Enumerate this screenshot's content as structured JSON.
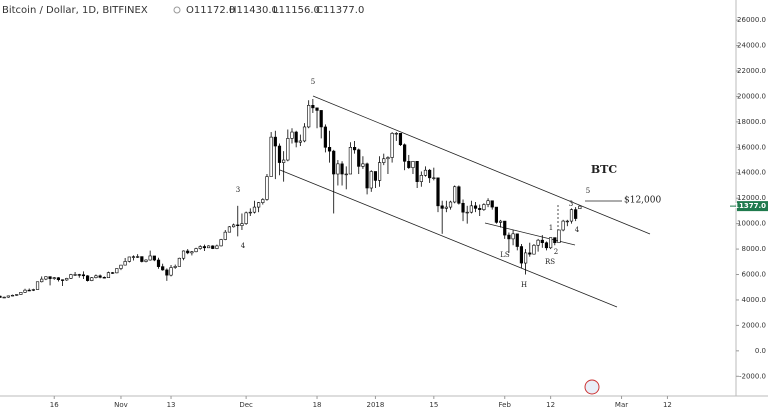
{
  "header": {
    "symbol": "Bitcoin / Dollar, 1D, BITFINEX",
    "open": "O11172.0",
    "high": "H11430.0",
    "low": "L11156.0",
    "close": "C11377.0"
  },
  "chart_data": {
    "type": "candlestick",
    "ohlc": [
      [
        4300,
        4350,
        4150,
        4200
      ],
      [
        4200,
        4260,
        4150,
        4220
      ],
      [
        4220,
        4350,
        4170,
        4320
      ],
      [
        4320,
        4420,
        4290,
        4370
      ],
      [
        4370,
        4460,
        4330,
        4430
      ],
      [
        4430,
        4620,
        4400,
        4600
      ],
      [
        4600,
        4880,
        4560,
        4770
      ],
      [
        4770,
        4900,
        4700,
        4760
      ],
      [
        4760,
        4880,
        4700,
        4820
      ],
      [
        4820,
        5450,
        4800,
        5430
      ],
      [
        5430,
        5850,
        5380,
        5640
      ],
      [
        5640,
        5850,
        5560,
        5830
      ],
      [
        5830,
        5850,
        5150,
        5680
      ],
      [
        5680,
        5800,
        5580,
        5750
      ],
      [
        5750,
        5790,
        5450,
        5590
      ],
      [
        5590,
        5620,
        5100,
        5570
      ],
      [
        5570,
        5740,
        5500,
        5700
      ],
      [
        5700,
        6050,
        5650,
        6000
      ],
      [
        6000,
        6200,
        5900,
        6000
      ],
      [
        6000,
        6050,
        5750,
        5980
      ],
      [
        5980,
        6250,
        5650,
        5900
      ],
      [
        5900,
        5950,
        5450,
        5520
      ],
      [
        5520,
        5800,
        5480,
        5750
      ],
      [
        5750,
        6000,
        5700,
        5900
      ],
      [
        5900,
        6000,
        5700,
        5780
      ],
      [
        5780,
        5850,
        5700,
        5750
      ],
      [
        5750,
        6230,
        5730,
        6150
      ],
      [
        6150,
        6200,
        6050,
        6130
      ],
      [
        6130,
        6480,
        6100,
        6470
      ],
      [
        6470,
        6750,
        6350,
        6740
      ],
      [
        6740,
        7300,
        6720,
        7030
      ],
      [
        7030,
        7400,
        6950,
        7380
      ],
      [
        7380,
        7500,
        7100,
        7400
      ],
      [
        7400,
        7600,
        7300,
        7410
      ],
      [
        7410,
        7420,
        6950,
        7020
      ],
      [
        7020,
        7200,
        6950,
        7140
      ],
      [
        7140,
        7880,
        7090,
        7460
      ],
      [
        7460,
        7460,
        7050,
        7140
      ],
      [
        7140,
        7320,
        6450,
        6620
      ],
      [
        6620,
        6850,
        6300,
        6360
      ],
      [
        6360,
        6480,
        5500,
        5950
      ],
      [
        5950,
        6750,
        5850,
        6550
      ],
      [
        6550,
        6780,
        6450,
        6640
      ],
      [
        6640,
        7320,
        6630,
        7280
      ],
      [
        7280,
        7900,
        7120,
        7850
      ],
      [
        7850,
        8000,
        7600,
        7700
      ],
      [
        7700,
        7850,
        7500,
        7790
      ],
      [
        7790,
        8100,
        7750,
        8040
      ],
      [
        8040,
        8300,
        7950,
        8200
      ],
      [
        8200,
        8350,
        7850,
        8100
      ],
      [
        8100,
        8300,
        8080,
        8250
      ],
      [
        8250,
        8300,
        8000,
        8040
      ],
      [
        8040,
        8350,
        8000,
        8250
      ],
      [
        8250,
        8800,
        8200,
        8750
      ],
      [
        8750,
        9500,
        8700,
        9330
      ],
      [
        9330,
        9800,
        9300,
        9750
      ],
      [
        9750,
        10000,
        9700,
        9900
      ],
      [
        9900,
        11400,
        9000,
        9840
      ],
      [
        9840,
        10800,
        9500,
        10000
      ],
      [
        10000,
        10950,
        9900,
        10850
      ],
      [
        10850,
        11200,
        10600,
        10900
      ],
      [
        10900,
        11800,
        10800,
        11300
      ],
      [
        11300,
        11700,
        10900,
        11650
      ],
      [
        11650,
        12000,
        11500,
        11900
      ],
      [
        11900,
        13900,
        11800,
        13700
      ],
      [
        13700,
        17200,
        13700,
        16800
      ],
      [
        16800,
        17300,
        13500,
        16100
      ],
      [
        16100,
        16300,
        13800,
        14800
      ],
      [
        14800,
        15700,
        13300,
        15000
      ],
      [
        15000,
        17400,
        14900,
        16700
      ],
      [
        16700,
        17500,
        16300,
        17200
      ],
      [
        17200,
        17300,
        16000,
        16400
      ],
      [
        16400,
        17000,
        16100,
        16500
      ],
      [
        16500,
        17900,
        16400,
        17600
      ],
      [
        17600,
        19700,
        17500,
        19300
      ],
      [
        19300,
        19800,
        18700,
        19100
      ],
      [
        19100,
        19100,
        17500,
        18900
      ],
      [
        18900,
        18900,
        16700,
        17600
      ],
      [
        17600,
        17800,
        15600,
        16000
      ],
      [
        16000,
        17300,
        14800,
        15700
      ],
      [
        15700,
        15800,
        10800,
        13900
      ],
      [
        13900,
        15000,
        13000,
        14700
      ],
      [
        14700,
        14900,
        13000,
        13900
      ],
      [
        13900,
        14500,
        12700,
        13900
      ],
      [
        13900,
        16400,
        13900,
        16000
      ],
      [
        16000,
        16500,
        15500,
        15800
      ],
      [
        15800,
        15900,
        13900,
        14500
      ],
      [
        14500,
        15300,
        14300,
        14700
      ],
      [
        14700,
        14800,
        12300,
        12800
      ],
      [
        12800,
        14200,
        12500,
        14100
      ],
      [
        14100,
        14100,
        12800,
        13400
      ],
      [
        13400,
        15300,
        12900,
        14800
      ],
      [
        14800,
        15500,
        14600,
        15100
      ],
      [
        15100,
        15300,
        13900,
        15200
      ],
      [
        15200,
        17200,
        14800,
        17100
      ],
      [
        17100,
        17200,
        16500,
        17100
      ],
      [
        17100,
        17100,
        16100,
        16200
      ],
      [
        16200,
        16300,
        14200,
        14900
      ],
      [
        14900,
        15400,
        14300,
        14400
      ],
      [
        14400,
        14900,
        13900,
        14900
      ],
      [
        14900,
        14900,
        12800,
        13300
      ],
      [
        13300,
        14100,
        12900,
        13800
      ],
      [
        13800,
        14500,
        13700,
        14200
      ],
      [
        14200,
        14300,
        13200,
        13600
      ],
      [
        13600,
        14400,
        13400,
        13600
      ],
      [
        13600,
        13600,
        10900,
        11400
      ],
      [
        11400,
        11800,
        9200,
        11200
      ],
      [
        11200,
        11800,
        10900,
        11300
      ],
      [
        11300,
        11800,
        11100,
        11700
      ],
      [
        11700,
        13000,
        11600,
        12900
      ],
      [
        12900,
        13000,
        11500,
        11600
      ],
      [
        11600,
        11900,
        10200,
        10900
      ],
      [
        10900,
        11400,
        10000,
        10900
      ],
      [
        10900,
        11800,
        10800,
        11400
      ],
      [
        11400,
        11700,
        10900,
        11200
      ],
      [
        11200,
        11500,
        10600,
        11100
      ],
      [
        11100,
        11600,
        11000,
        11500
      ],
      [
        11500,
        12000,
        11300,
        11800
      ],
      [
        11800,
        11800,
        11100,
        11300
      ],
      [
        11300,
        11300,
        10000,
        10100
      ],
      [
        10100,
        10300,
        9700,
        10200
      ],
      [
        10200,
        10200,
        8800,
        9100
      ],
      [
        9100,
        9300,
        7700,
        8800
      ],
      [
        8800,
        9500,
        8300,
        9200
      ],
      [
        9200,
        9200,
        7900,
        8200
      ],
      [
        8200,
        8400,
        6500,
        6900
      ],
      [
        6900,
        8000,
        6000,
        7700
      ],
      [
        7700,
        8500,
        7400,
        7600
      ],
      [
        7600,
        8400,
        7600,
        8300
      ],
      [
        8300,
        8800,
        7800,
        8700
      ],
      [
        8700,
        9100,
        8100,
        8500
      ],
      [
        8500,
        8600,
        7900,
        8100
      ],
      [
        8100,
        8900,
        8000,
        8900
      ],
      [
        8900,
        8900,
        8300,
        8500
      ],
      [
        8500,
        9500,
        8500,
        9500
      ],
      [
        9500,
        10300,
        9400,
        10200
      ],
      [
        10200,
        10300,
        9800,
        10200
      ],
      [
        10200,
        11200,
        10000,
        11100
      ],
      [
        11100,
        11300,
        10200,
        10400
      ],
      [
        11172,
        11430,
        11156,
        11377
      ]
    ],
    "xlim": [
      0,
      175
    ],
    "xticks": [
      {
        "value": 13,
        "label": "16"
      },
      {
        "value": 29,
        "label": "Nov"
      },
      {
        "value": 41,
        "label": "13"
      },
      {
        "value": 59,
        "label": "Dec"
      },
      {
        "value": 76,
        "label": "18"
      },
      {
        "value": 90,
        "label": "2018"
      },
      {
        "value": 104,
        "label": "15"
      },
      {
        "value": 121,
        "label": "Feb"
      },
      {
        "value": 132,
        "label": "12"
      },
      {
        "value": 149,
        "label": "Mar"
      },
      {
        "value": 160,
        "label": "12"
      }
    ],
    "ylim": [
      -3550,
      27580
    ],
    "yticks": [
      {
        "value": -2000,
        "label": "-2000.0"
      },
      {
        "value": 0,
        "label": "0.0"
      },
      {
        "value": 2000,
        "label": "2000.0"
      },
      {
        "value": 4000,
        "label": "4000.0"
      },
      {
        "value": 6000,
        "label": "6000.0"
      },
      {
        "value": 8000,
        "label": "8000.0"
      },
      {
        "value": 10000,
        "label": "10000.0"
      },
      {
        "value": 12000,
        "label": "12000.0"
      },
      {
        "value": 14000,
        "label": "14000.0"
      },
      {
        "value": 16000,
        "label": "16000.0"
      },
      {
        "value": 18000,
        "label": "18000.0"
      },
      {
        "value": 20000,
        "label": "20000.0"
      },
      {
        "value": 22000,
        "label": "22000.0"
      },
      {
        "value": 24000,
        "label": "24000.0"
      },
      {
        "value": 26000,
        "label": "26000.0"
      }
    ],
    "last_price": {
      "value": 11377,
      "label": "11377.0"
    },
    "up_color": "#ffffff",
    "down_color": "#000000",
    "edge_color": "#000000",
    "last_price_color": "#1f7a4d",
    "grid": false,
    "annotations": [
      "5",
      "3",
      "4",
      "BTC",
      "5",
      "$12,000",
      "1",
      "2",
      "3",
      "4",
      "LS",
      "RS",
      "H"
    ]
  }
}
